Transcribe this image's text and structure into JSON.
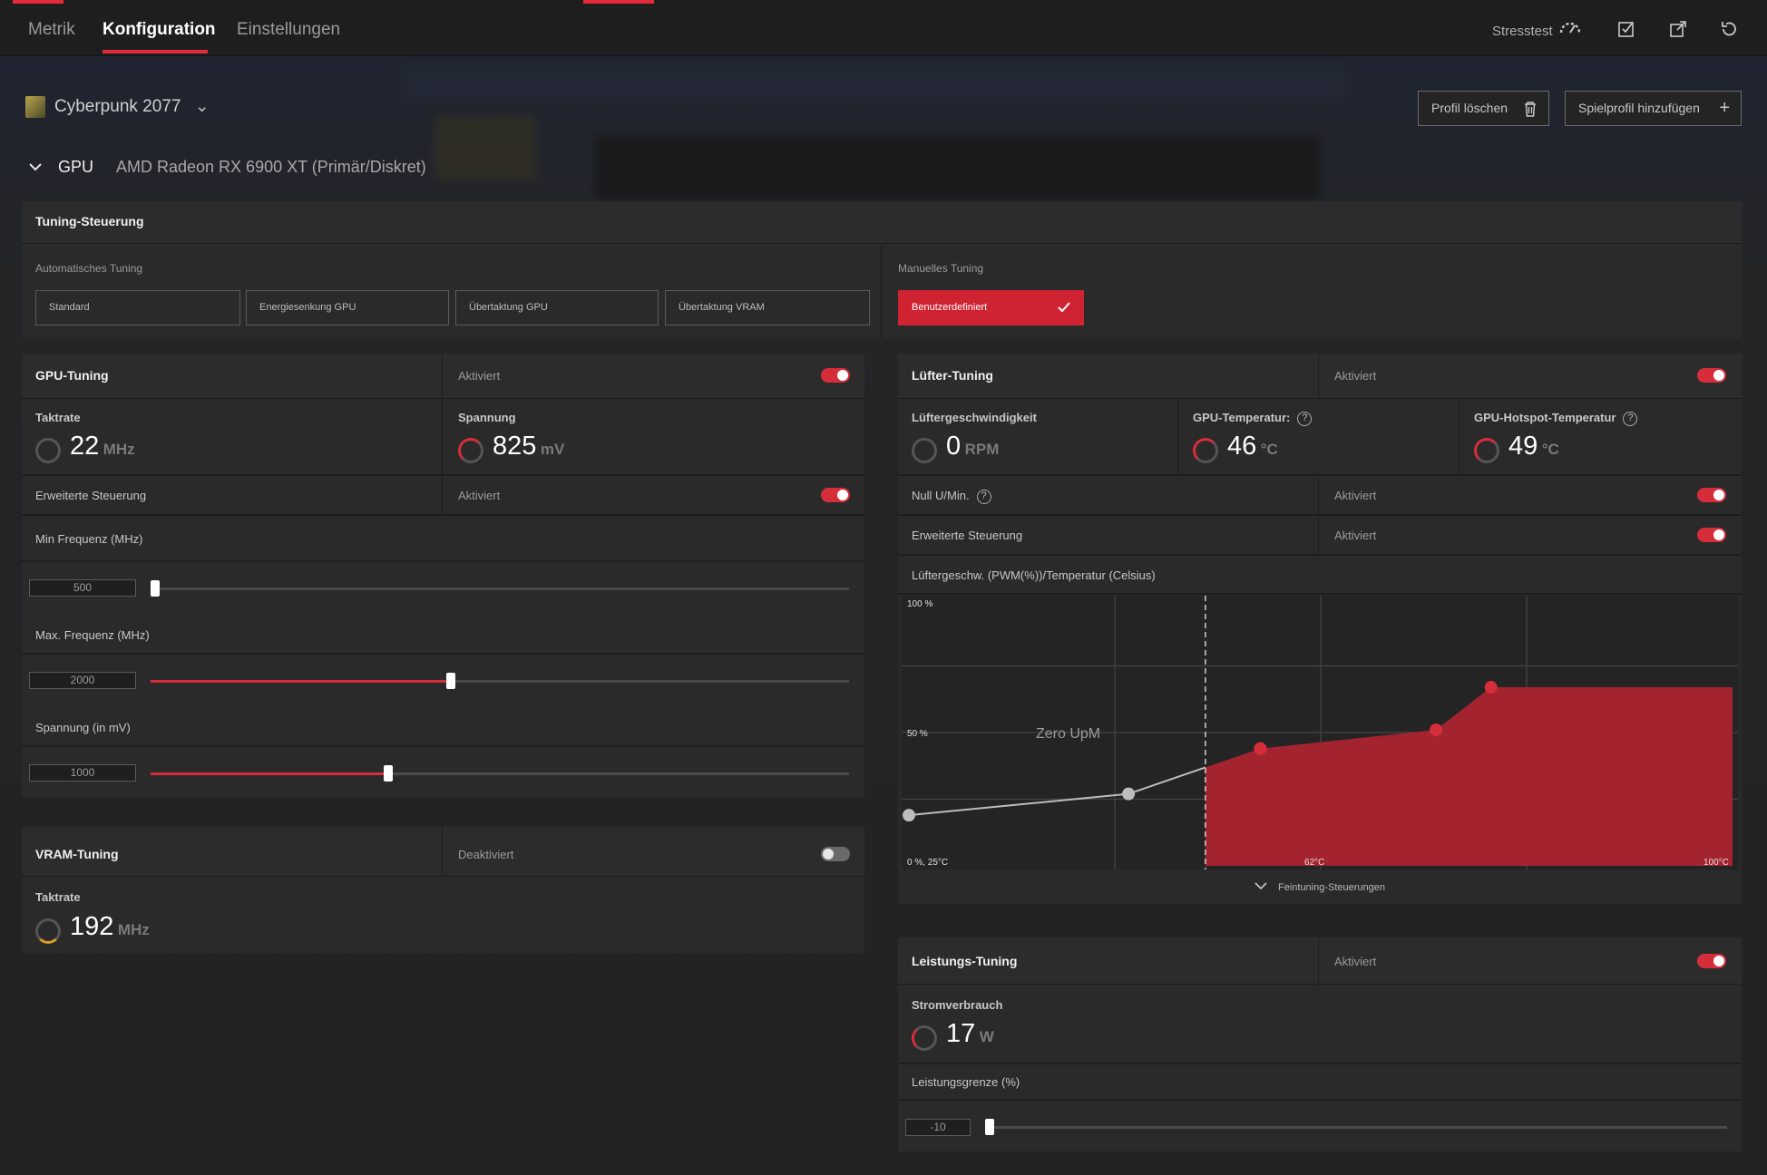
{
  "tabs": [
    {
      "label": "Metrik"
    },
    {
      "label": "Konfiguration"
    },
    {
      "label": "Einstellungen"
    }
  ],
  "topbar": {
    "stress_label": "Stresstest"
  },
  "game": {
    "name": "Cyberpunk 2077"
  },
  "profile": {
    "delete_label": "Profil löschen",
    "add_label": "Spielprofil hinzufügen"
  },
  "gpu": {
    "section_label": "GPU",
    "device": "AMD Radeon RX 6900 XT (Primär/Diskret)"
  },
  "tuning_control": {
    "title": "Tuning-Steuerung",
    "auto_label": "Automatisches Tuning",
    "auto_options": [
      "Standard",
      "Energiesenkung GPU",
      "Übertaktung GPU",
      "Übertaktung VRAM"
    ],
    "manual_label": "Manuelles Tuning",
    "manual_option": "Benutzerdefiniert"
  },
  "gpu_tuning": {
    "title": "GPU-Tuning",
    "state": "Aktiviert",
    "enabled": true,
    "clock": {
      "label": "Taktrate",
      "value": "22",
      "unit": "MHz"
    },
    "voltage": {
      "label": "Spannung",
      "value": "825",
      "unit": "mV"
    },
    "advanced": {
      "label": "Erweiterte Steuerung",
      "state": "Aktiviert",
      "enabled": true
    },
    "min_freq": {
      "label": "Min Frequenz (MHz)",
      "value": "500",
      "fraction": 0.0
    },
    "max_freq": {
      "label": "Max. Frequenz (MHz)",
      "value": "2000",
      "fraction": 0.43
    },
    "voltage_slider": {
      "label": "Spannung (in mV)",
      "value": "1000",
      "fraction": 0.34
    }
  },
  "vram_tuning": {
    "title": "VRAM-Tuning",
    "state": "Deaktiviert",
    "enabled": false,
    "clock": {
      "label": "Taktrate",
      "value": "192",
      "unit": "MHz"
    }
  },
  "fan_tuning": {
    "title": "Lüfter-Tuning",
    "state": "Aktiviert",
    "enabled": true,
    "speed": {
      "label": "Lüftergeschwindigkeit",
      "value": "0",
      "unit": "RPM"
    },
    "gpu_temp": {
      "label": "GPU-Temperatur:",
      "value": "46",
      "unit": "°C"
    },
    "hotspot_temp": {
      "label": "GPU-Hotspot-Temperatur",
      "value": "49",
      "unit": "°C"
    },
    "zero_rpm": {
      "label": "Null U/Min.",
      "state": "Aktiviert",
      "enabled": true
    },
    "advanced": {
      "label": "Erweiterte Steuerung",
      "state": "Aktiviert",
      "enabled": true
    },
    "curve_title": "Lüftergeschw. (PWM(%))/Temperatur (Celsius)",
    "fine_tuning_label": "Feintuning-Steuerungen"
  },
  "chart_data": {
    "type": "line",
    "x_unit": "°C",
    "y_unit": "%",
    "xlim": [
      25,
      100
    ],
    "ylim": [
      0,
      100
    ],
    "y_tick_labels": [
      "100 %",
      "50 %",
      "0 %, 25°C"
    ],
    "x_tick_labels": [
      "62°C",
      "100°C"
    ],
    "annotation": "Zero UpM",
    "zero_rpm_threshold": 52,
    "points": [
      {
        "x": 25,
        "y": 19
      },
      {
        "x": 45,
        "y": 27
      },
      {
        "x": 57,
        "y": 44
      },
      {
        "x": 73,
        "y": 51
      },
      {
        "x": 78,
        "y": 67
      },
      {
        "x": 100,
        "y": 67
      }
    ],
    "colors": {
      "active_fill": "#a3232f",
      "point_active": "#d62d3a",
      "point_inactive": "#bdbdbd"
    }
  },
  "power_tuning": {
    "title": "Leistungs-Tuning",
    "state": "Aktiviert",
    "enabled": true,
    "consumption": {
      "label": "Stromverbrauch",
      "value": "17",
      "unit": "W"
    },
    "limit": {
      "label": "Leistungsgrenze (%)",
      "value": "-10",
      "fraction": 0.0
    }
  }
}
